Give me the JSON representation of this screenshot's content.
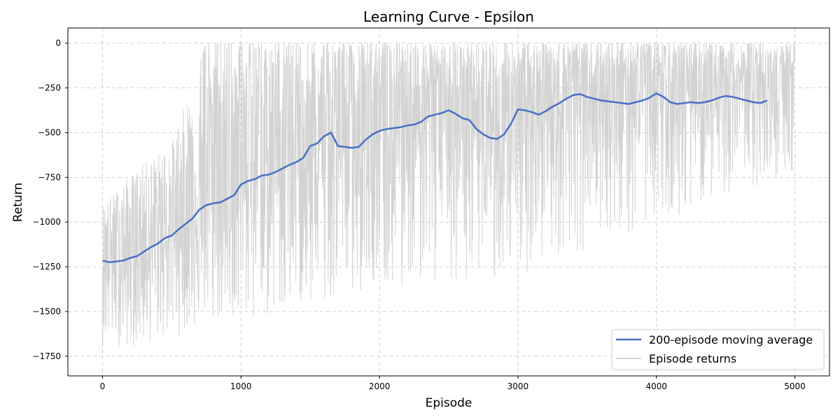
{
  "chart_data": {
    "type": "line",
    "title": "Learning Curve - Epsilon",
    "xlabel": "Episode",
    "ylabel": "Return",
    "xlim": [
      -250,
      5250
    ],
    "ylim": [
      -1860,
      85
    ],
    "xticks": [
      0,
      1000,
      2000,
      3000,
      4000,
      5000
    ],
    "yticks": [
      0,
      -250,
      -500,
      -750,
      -1000,
      -1250,
      -1500,
      -1750
    ],
    "xtick_labels": [
      "0",
      "1000",
      "2000",
      "3000",
      "4000",
      "5000"
    ],
    "ytick_labels": [
      "0",
      "−250",
      "−500",
      "−750",
      "−1000",
      "−1250",
      "−1500",
      "−1750"
    ],
    "grid": true,
    "legend_position": "lower-right",
    "series": [
      {
        "name": "200-episode moving average",
        "color": "#4a6fc7",
        "x": [
          0,
          50,
          100,
          150,
          200,
          250,
          300,
          350,
          400,
          450,
          500,
          550,
          600,
          650,
          700,
          750,
          800,
          850,
          900,
          950,
          1000,
          1050,
          1100,
          1150,
          1200,
          1250,
          1300,
          1350,
          1400,
          1450,
          1500,
          1550,
          1600,
          1650,
          1700,
          1750,
          1800,
          1850,
          1900,
          1950,
          2000,
          2050,
          2100,
          2150,
          2200,
          2250,
          2300,
          2350,
          2400,
          2450,
          2500,
          2550,
          2600,
          2650,
          2700,
          2750,
          2800,
          2850,
          2900,
          2950,
          3000,
          3050,
          3100,
          3150,
          3200,
          3250,
          3300,
          3350,
          3400,
          3450,
          3500,
          3550,
          3600,
          3650,
          3700,
          3750,
          3800,
          3850,
          3900,
          3950,
          4000,
          4050,
          4100,
          4150,
          4200,
          4250,
          4300,
          4350,
          4400,
          4450,
          4500,
          4550,
          4600,
          4650,
          4700,
          4750,
          4800
        ],
        "values": [
          -1215,
          -1225,
          -1220,
          -1215,
          -1200,
          -1190,
          -1165,
          -1140,
          -1120,
          -1090,
          -1075,
          -1040,
          -1010,
          -980,
          -930,
          -905,
          -895,
          -890,
          -870,
          -850,
          -790,
          -770,
          -760,
          -740,
          -735,
          -720,
          -700,
          -680,
          -665,
          -640,
          -575,
          -560,
          -520,
          -500,
          -575,
          -580,
          -585,
          -580,
          -540,
          -510,
          -490,
          -480,
          -475,
          -470,
          -460,
          -455,
          -440,
          -410,
          -400,
          -390,
          -375,
          -395,
          -420,
          -430,
          -480,
          -510,
          -530,
          -535,
          -510,
          -450,
          -370,
          -375,
          -385,
          -400,
          -380,
          -355,
          -335,
          -310,
          -290,
          -285,
          -300,
          -310,
          -320,
          -325,
          -330,
          -335,
          -340,
          -330,
          -320,
          -305,
          -280,
          -300,
          -330,
          -340,
          -335,
          -330,
          -335,
          -330,
          -320,
          -305,
          -295,
          -300,
          -310,
          -320,
          -330,
          -335,
          -320
        ]
      },
      {
        "name": "Episode returns",
        "color": "#d3d3d3",
        "x_start": 0,
        "x_end": 5000,
        "envelope_x": [
          0,
          250,
          500,
          750,
          1000,
          1250,
          1500,
          1750,
          2000,
          2250,
          2500,
          2750,
          3000,
          3250,
          3500,
          3750,
          4000,
          4250,
          4500,
          4750,
          5000
        ],
        "envelope_upper": [
          -900,
          -700,
          -550,
          0,
          0,
          0,
          0,
          0,
          0,
          0,
          0,
          0,
          0,
          0,
          0,
          0,
          0,
          0,
          0,
          0,
          0
        ],
        "envelope_lower": [
          -1700,
          -1700,
          -1650,
          -1580,
          -1550,
          -1520,
          -1450,
          -1420,
          -1380,
          -1350,
          -1320,
          -1320,
          -1300,
          -1300,
          -1200,
          -1100,
          -1000,
          -950,
          -850,
          -800,
          -750
        ]
      }
    ]
  }
}
